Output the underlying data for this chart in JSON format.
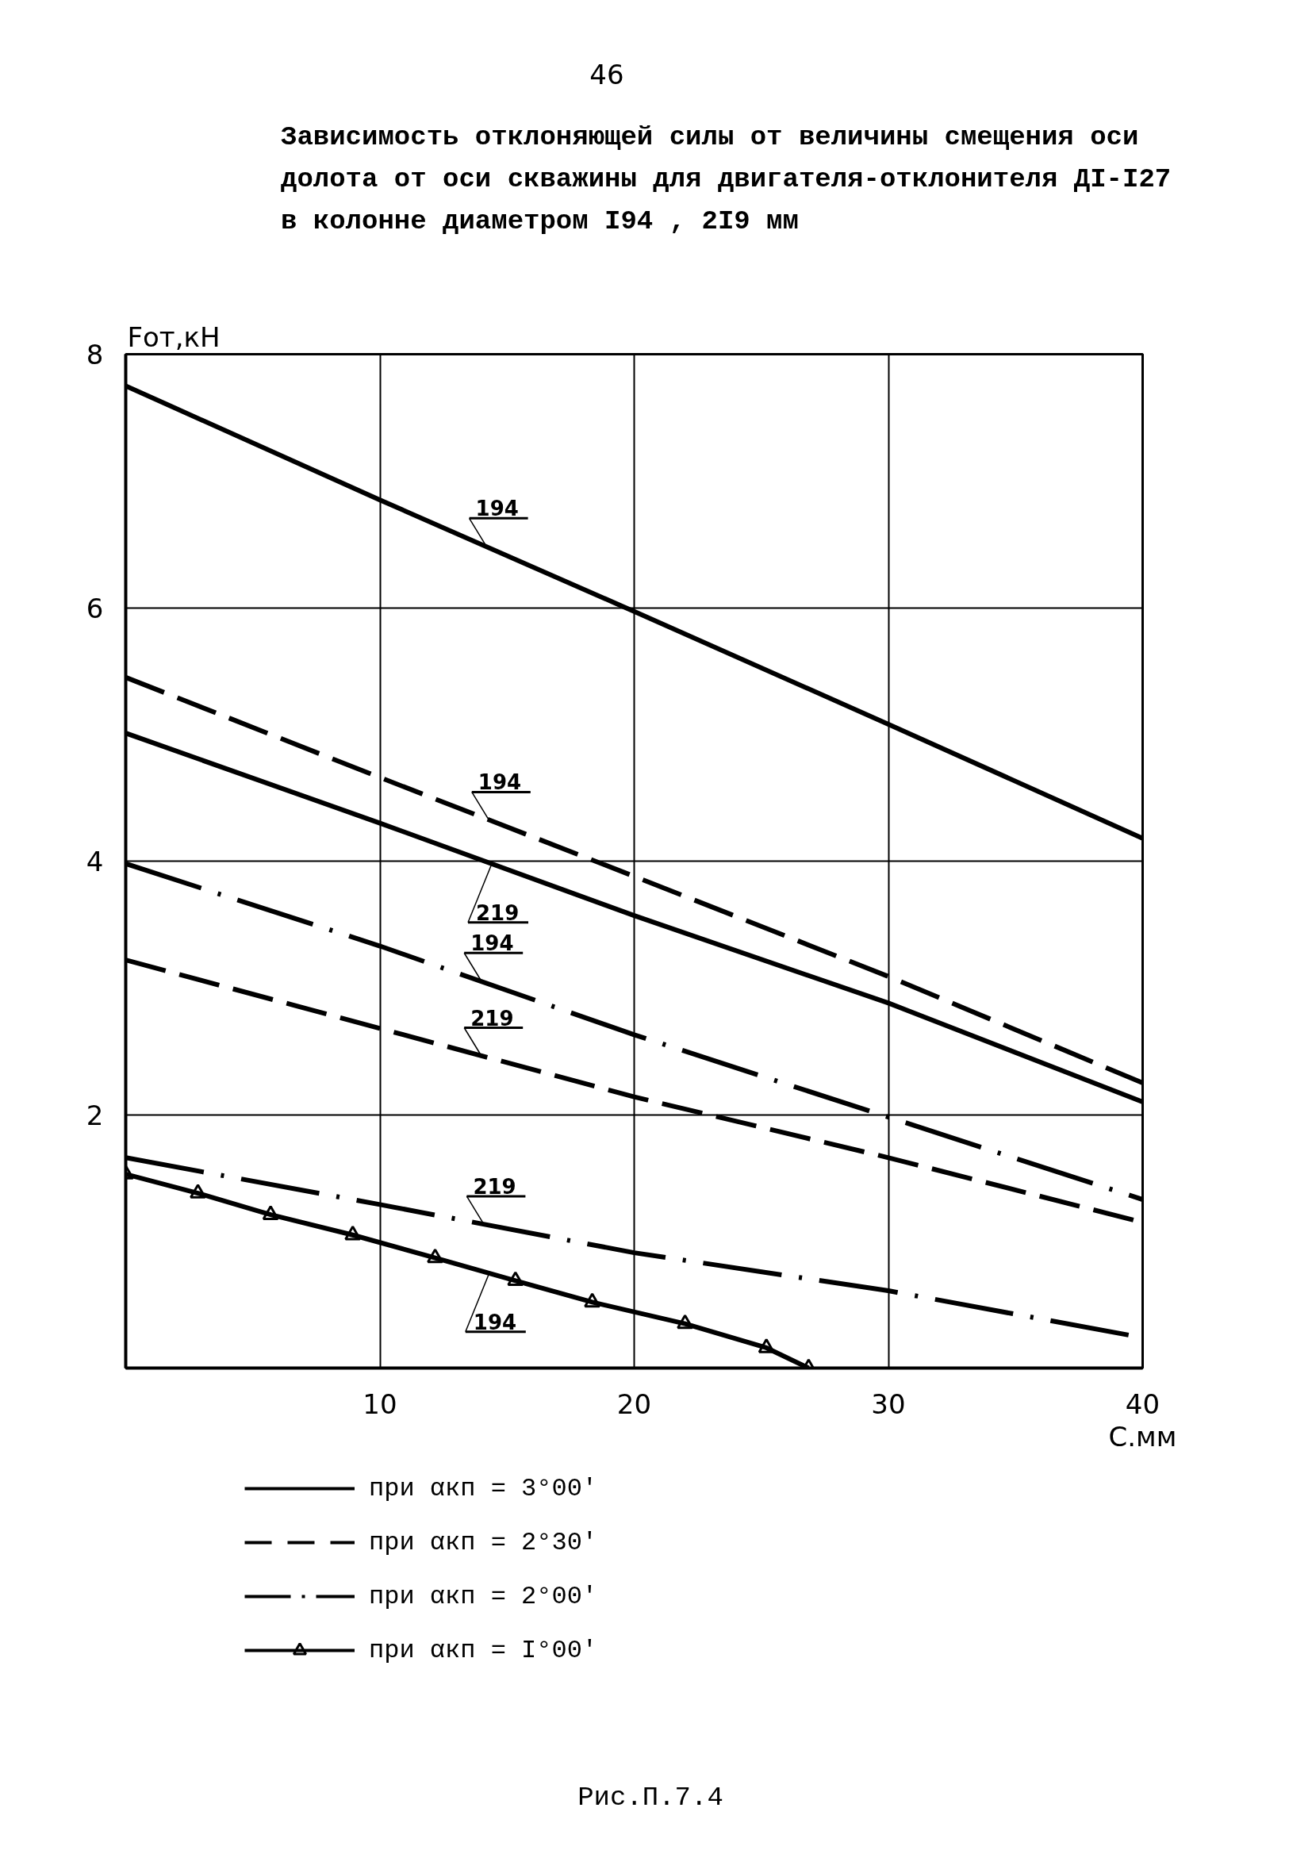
{
  "chart_data": {
    "type": "line",
    "title": "Зависимость отклоняющей силы от величины смещения оси долота от оси скважины для двигателя-отклонителя ДI-I27 в колонне диаметром I94 , 2I9 мм",
    "xlabel": "С.мм",
    "ylabel": "Fот,кН",
    "x": [
      0,
      10,
      20,
      30,
      40
    ],
    "xlim": [
      0,
      40
    ],
    "ylim": [
      0,
      8
    ],
    "xticks": [
      10,
      20,
      30,
      40
    ],
    "yticks": [
      2,
      4,
      6,
      8
    ],
    "grid": true,
    "legend": "bottom",
    "series": [
      {
        "name": "при αкп = 3°00'",
        "color": "#000000",
        "line_style": "solid",
        "values": [
          7.75,
          6.85,
          5.97,
          5.08,
          4.18
        ]
      },
      {
        "name": "при αкп = 2°30'",
        "color": "#000000",
        "line_style": "dashed",
        "values": [
          5.45,
          4.66,
          3.88,
          3.09,
          2.25
        ]
      },
      {
        "color": "#000000",
        "line_style": "solid",
        "values": [
          5.01,
          4.3,
          3.57,
          2.88,
          2.1
        ]
      },
      {
        "name": "при αкп = 2°00'",
        "color": "#000000",
        "line_style": "dashdot",
        "values": [
          3.98,
          3.33,
          2.63,
          1.98,
          1.33
        ]
      },
      {
        "color": "#000000",
        "line_style": "dashed",
        "values": [
          3.22,
          2.68,
          2.14,
          1.66,
          1.15
        ]
      },
      {
        "color": "#000000",
        "line_style": "dashdot",
        "values": [
          1.66,
          1.29,
          0.91,
          0.61,
          0.24
        ]
      },
      {
        "name": "при αкп = I°00'",
        "color": "#000000",
        "line_style": "solid",
        "marker": "triangle",
        "x": [
          0,
          2.84,
          5.7,
          8.93,
          12.17,
          15.33,
          18.35,
          22.0,
          25.2,
          26.86
        ],
        "values": [
          1.53,
          1.38,
          1.21,
          1.05,
          0.87,
          0.69,
          0.52,
          0.35,
          0.16,
          0
        ]
      }
    ],
    "annotations": [
      "46",
      {
        "text": "194",
        "x": 14.2,
        "y": 6.48
      },
      {
        "text": "194",
        "x": 14.3,
        "y": 4.32
      },
      {
        "text": "219",
        "x": 14.4,
        "y": 3.98
      },
      {
        "text": "194",
        "x": 14.0,
        "y": 3.05
      },
      {
        "text": "219",
        "x": 14.0,
        "y": 2.46
      },
      {
        "text": "219",
        "x": 14.1,
        "y": 1.13
      },
      {
        "text": "194",
        "x": 14.3,
        "y": 0.75
      },
      "Рис.П.7.4"
    ]
  }
}
